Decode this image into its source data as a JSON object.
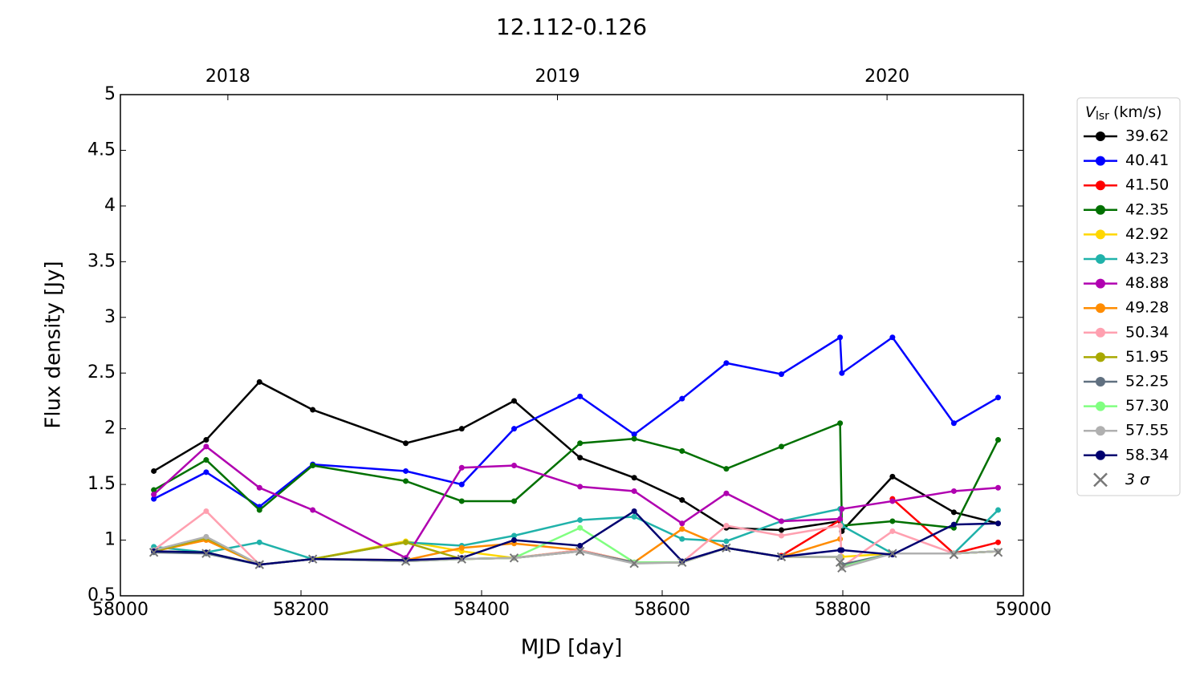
{
  "chart_data": {
    "type": "line",
    "title": "12.112-0.126",
    "xlabel": "MJD [day]",
    "ylabel": "Flux density [Jy]",
    "x": [
      58037,
      58095,
      58154,
      58213,
      58316,
      58378,
      58436,
      58509,
      58569,
      58622,
      58671,
      58732,
      58797,
      58799,
      58855,
      58923,
      58972
    ],
    "xlim": [
      58000,
      59000
    ],
    "xticks": [
      58000,
      58200,
      58400,
      58600,
      58800,
      59000
    ],
    "ylim": [
      0.5,
      5.0
    ],
    "yticks": [
      0.5,
      1.0,
      1.5,
      2.0,
      2.5,
      3.0,
      3.5,
      4.0,
      4.5,
      5.0
    ],
    "top_xticks": [
      {
        "value": 58119,
        "label": "2018"
      },
      {
        "value": 58484,
        "label": "2019"
      },
      {
        "value": 58849,
        "label": "2020"
      }
    ],
    "legend_title": [
      "V",
      "lsr",
      "(km/s)"
    ],
    "legend": "outside right",
    "series": [
      {
        "name": "39.62",
        "color": "#000000",
        "values": [
          1.62,
          1.9,
          2.42,
          2.17,
          1.87,
          2.0,
          2.25,
          1.74,
          1.56,
          1.36,
          1.11,
          1.09,
          1.17,
          1.08,
          1.57,
          1.25,
          1.15
        ]
      },
      {
        "name": "40.41",
        "color": "#0000ff",
        "values": [
          1.37,
          1.61,
          1.3,
          1.68,
          1.62,
          1.5,
          2.0,
          2.29,
          1.95,
          2.27,
          2.59,
          2.49,
          2.82,
          2.5,
          2.82,
          2.05,
          2.28
        ]
      },
      {
        "name": "41.50",
        "color": "#ff0000",
        "values": [
          null,
          null,
          null,
          null,
          null,
          null,
          null,
          null,
          null,
          null,
          null,
          0.86,
          1.18,
          null,
          1.37,
          0.88,
          0.98
        ]
      },
      {
        "name": "42.35",
        "color": "#007000",
        "values": [
          1.45,
          1.72,
          1.27,
          1.67,
          1.53,
          1.35,
          1.35,
          1.87,
          1.91,
          1.8,
          1.64,
          1.84,
          2.05,
          1.13,
          1.17,
          1.11,
          1.9
        ]
      },
      {
        "name": "42.92",
        "color": "#ffd700",
        "values": [
          0.9,
          0.89,
          0.78,
          0.83,
          0.99,
          0.9,
          0.84,
          0.91,
          0.8,
          0.8,
          0.93,
          0.85,
          0.85,
          0.85,
          0.88,
          0.88,
          0.9
        ]
      },
      {
        "name": "43.23",
        "color": "#20b2aa",
        "values": [
          0.94,
          0.89,
          0.98,
          0.83,
          0.98,
          0.95,
          1.04,
          1.18,
          1.21,
          1.01,
          0.99,
          1.17,
          1.28,
          1.13,
          0.88,
          0.88,
          1.27
        ]
      },
      {
        "name": "48.88",
        "color": "#b000b0",
        "values": [
          1.41,
          1.84,
          1.47,
          1.27,
          0.84,
          1.65,
          1.67,
          1.48,
          1.44,
          1.15,
          1.42,
          1.17,
          1.19,
          1.28,
          1.35,
          1.44,
          1.47
        ]
      },
      {
        "name": "49.28",
        "color": "#ff8c00",
        "values": [
          0.9,
          1.0,
          0.78,
          0.83,
          0.82,
          0.93,
          0.97,
          0.91,
          0.8,
          1.1,
          0.93,
          0.85,
          1.01,
          null,
          0.88,
          0.88,
          0.9
        ]
      },
      {
        "name": "50.34",
        "color": "#ffa0b0",
        "values": [
          0.91,
          1.26,
          0.78,
          0.83,
          0.82,
          0.83,
          0.84,
          0.91,
          0.8,
          0.8,
          1.13,
          1.04,
          1.13,
          0.76,
          1.08,
          0.88,
          0.9
        ]
      },
      {
        "name": "51.95",
        "color": "#a8a800",
        "values": [
          0.9,
          1.02,
          0.78,
          0.83,
          0.98,
          0.83,
          0.84,
          0.9,
          0.8,
          0.8,
          0.93,
          0.85,
          0.85,
          0.76,
          0.88,
          0.88,
          0.9
        ]
      },
      {
        "name": "52.25",
        "color": "#607080",
        "values": [
          0.89,
          0.88,
          0.78,
          0.83,
          0.81,
          0.83,
          0.84,
          0.9,
          0.8,
          0.8,
          0.93,
          0.85,
          0.85,
          0.78,
          0.88,
          0.88,
          0.9
        ]
      },
      {
        "name": "57.30",
        "color": "#80ff80",
        "values": [
          0.9,
          0.89,
          0.78,
          0.83,
          0.81,
          0.83,
          0.84,
          1.11,
          0.8,
          0.8,
          0.93,
          0.85,
          0.85,
          0.76,
          0.88,
          0.88,
          0.9
        ]
      },
      {
        "name": "57.55",
        "color": "#b0b0b0",
        "values": [
          0.91,
          1.03,
          0.78,
          0.83,
          0.81,
          0.83,
          0.84,
          0.9,
          0.79,
          0.8,
          0.93,
          0.85,
          0.85,
          0.75,
          0.88,
          0.88,
          0.9
        ]
      },
      {
        "name": "58.34",
        "color": "#000070",
        "values": [
          0.9,
          0.89,
          0.78,
          0.83,
          0.82,
          0.84,
          1.0,
          0.95,
          1.26,
          0.81,
          0.93,
          0.85,
          0.91,
          0.91,
          0.87,
          1.14,
          1.15
        ]
      },
      {
        "name": "3 σ",
        "color": "#777777",
        "marker": "x",
        "values": [
          0.89,
          0.88,
          0.78,
          0.83,
          0.81,
          0.83,
          0.84,
          0.9,
          0.79,
          0.8,
          0.93,
          0.85,
          0.8,
          0.75,
          0.88,
          0.87,
          0.89
        ]
      }
    ]
  }
}
